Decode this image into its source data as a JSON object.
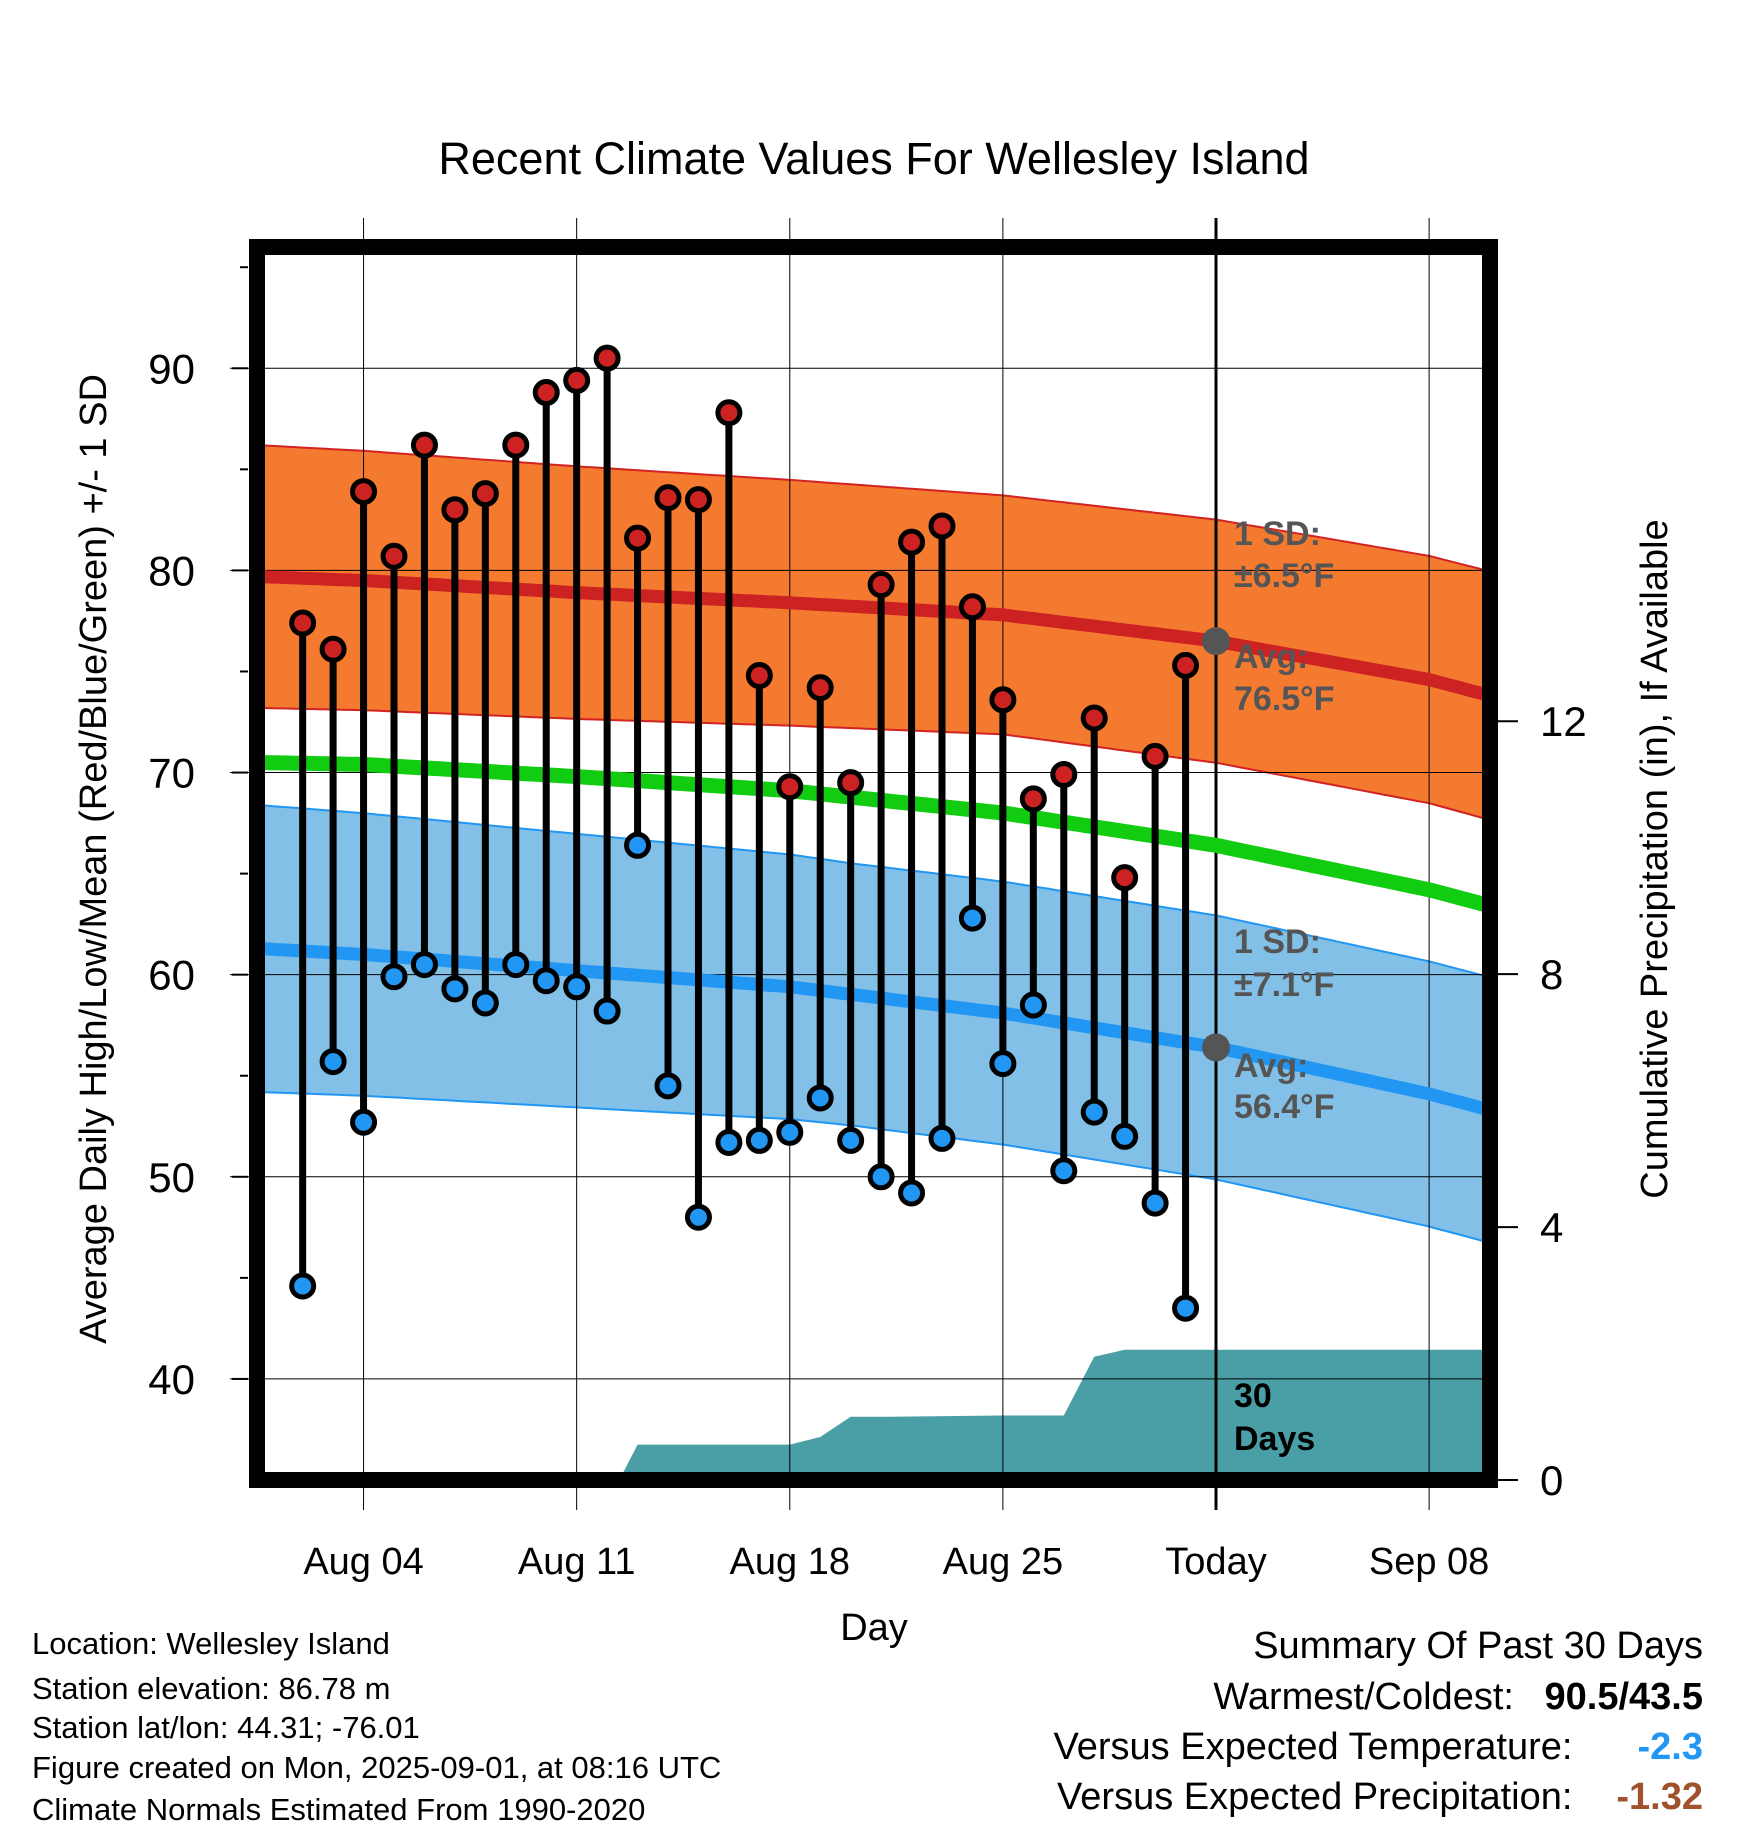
{
  "chart_data": {
    "type": "line",
    "title": "Recent Climate Values For Wellesley Island",
    "xlabel": "Day",
    "ylabel": "Average Daily High/Low/Mean (Red/Blue/Green) +/- 1 SD",
    "y2label": "Cumulative Precipitation (in), If Available",
    "ylim": [
      35,
      96
    ],
    "y2lim": [
      0,
      19.5
    ],
    "x_tick_labels": [
      "Aug 04",
      "Aug 11",
      "Aug 18",
      "Aug 25",
      "Today",
      "Sep 08"
    ],
    "x_tick_days": [
      4,
      11,
      18,
      25,
      32,
      39
    ],
    "x_range_days": [
      0.5,
      41
    ],
    "today_day": 32,
    "y_ticks": [
      40,
      50,
      60,
      70,
      80,
      90
    ],
    "y2_ticks": [
      0,
      4,
      8,
      12
    ],
    "days": [
      2,
      3,
      4,
      5,
      6,
      7,
      8,
      9,
      10,
      11,
      12,
      13,
      14,
      15,
      16,
      17,
      18,
      19,
      20,
      21,
      22,
      23,
      24,
      25,
      26,
      27,
      28,
      29,
      30,
      31
    ],
    "series": [
      {
        "name": "High",
        "color": "#cc2222",
        "values": [
          77.4,
          76.1,
          83.9,
          80.7,
          86.2,
          83.0,
          83.8,
          86.2,
          88.8,
          89.4,
          90.5,
          81.6,
          83.6,
          83.5,
          87.8,
          74.8,
          69.3,
          74.2,
          69.5,
          79.3,
          81.4,
          82.2,
          78.2,
          73.6,
          68.7,
          69.9,
          72.7,
          64.8,
          70.8,
          75.3
        ]
      },
      {
        "name": "Low",
        "color": "#2196f3",
        "values": [
          44.6,
          55.7,
          52.7,
          59.9,
          60.5,
          59.3,
          58.6,
          60.5,
          59.7,
          59.4,
          58.2,
          66.4,
          54.5,
          48.0,
          51.7,
          51.8,
          52.2,
          53.9,
          51.8,
          50.0,
          49.2,
          51.9,
          62.8,
          55.6,
          58.5,
          50.3,
          53.2,
          52.0,
          48.7,
          43.5
        ]
      }
    ],
    "normals": {
      "days": [
        0.5,
        4,
        11,
        18,
        25,
        32,
        39,
        41
      ],
      "high_avg": [
        79.7,
        79.5,
        78.9,
        78.4,
        77.8,
        76.5,
        74.6,
        73.8
      ],
      "high_sd": 6.5,
      "low_avg": [
        61.3,
        61.0,
        60.2,
        59.4,
        58.1,
        56.4,
        54.1,
        53.3
      ],
      "low_sd": 7.1,
      "mean_avg": [
        70.5,
        70.4,
        69.8,
        69.1,
        68.0,
        66.4,
        64.2,
        63.4
      ]
    },
    "precip_cumulative": {
      "days": [
        0.5,
        12.4,
        13,
        16,
        18,
        19,
        20,
        21,
        25,
        27,
        28,
        29,
        41
      ],
      "values": [
        0,
        0,
        0.56,
        0.56,
        0.56,
        0.68,
        1.0,
        1.0,
        1.02,
        1.02,
        1.95,
        2.06,
        2.06
      ]
    },
    "annotations": {
      "high_sd_label": "1 SD:",
      "high_sd_value": "±6.5°F",
      "high_avg_label": "Avg:",
      "high_avg_value": "76.5°F",
      "low_sd_label": "1 SD:",
      "low_sd_value": "±7.1°F",
      "low_avg_label": "Avg:",
      "low_avg_value": "56.4°F",
      "days_line1": "30",
      "days_line2": "Days"
    },
    "colors": {
      "high_band": "#f47a30",
      "high_line": "#cc2222",
      "low_band": "#82c0e8",
      "low_line": "#2196f3",
      "mean_line": "#11cc11",
      "precip": "#4a9ea6",
      "annotation": "#555555"
    }
  },
  "info": {
    "location": "Location: Wellesley Island",
    "elevation": "Station elevation: 86.78 m",
    "latlon": "Station lat/lon: 44.31; -76.01",
    "created": "Figure created on Mon, 2025-09-01, at 08:16 UTC",
    "normals": "Climate Normals Estimated From 1990-2020"
  },
  "summary": {
    "title": "Summary Of Past 30 Days",
    "warmest_label": "Warmest/Coldest:",
    "warmest_value": "90.5/43.5",
    "temp_label": "Versus Expected Temperature:",
    "temp_value": "-2.3",
    "temp_color": "#2196f3",
    "precip_label": "Versus Expected Precipitation:",
    "precip_value": "-1.32",
    "precip_color": "#a0522d"
  }
}
